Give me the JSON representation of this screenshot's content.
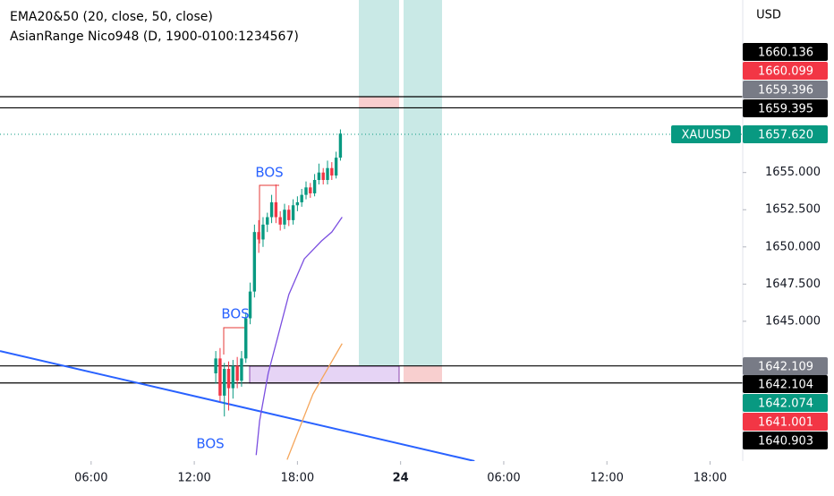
{
  "header": {
    "indicator_1": "EMA20&50 (20, close, 50, close)",
    "indicator_2": "AsianRange Nico948 (D, 1900-0100:1234567)",
    "currency": "USD"
  },
  "chart_data": {
    "type": "candlestick",
    "xlim": [
      0.7,
      43.9
    ],
    "ylim": [
      1635.6,
      1666.6
    ],
    "xticks": [
      {
        "value": 6,
        "label": "06:00"
      },
      {
        "value": 12,
        "label": "12:00"
      },
      {
        "value": 18,
        "label": "18:00"
      },
      24,
      {
        "value": 30,
        "label": "06:00"
      },
      {
        "value": 36,
        "label": "12:00"
      },
      {
        "value": 42,
        "label": "18:00"
      }
    ],
    "yticks": [
      {
        "value": 1645,
        "label": "1645.000"
      },
      {
        "value": 1647.5,
        "label": "1647.500"
      },
      {
        "value": 1650,
        "label": "1650.000"
      },
      {
        "value": 1652.5,
        "label": "1652.500"
      },
      {
        "value": 1655,
        "label": "1655.000"
      }
    ],
    "up_color": "#089981",
    "down_color": "#f23645",
    "candles": {
      "t": [
        13.25,
        13.5,
        13.75,
        14.0,
        14.25,
        14.5,
        14.75,
        15.0,
        15.25,
        15.5,
        15.75,
        16.0,
        16.25,
        16.5,
        16.75,
        17.0,
        17.25,
        17.5,
        17.75,
        18.0,
        18.25,
        18.5,
        18.75,
        19.0,
        19.25,
        19.5,
        19.75,
        20.0,
        20.25,
        20.5
      ],
      "open": [
        1641.5,
        1642.5,
        1640.0,
        1641.8,
        1640.5,
        1642.0,
        1641.0,
        1642.5,
        1645.2,
        1647.0,
        1651.0,
        1650.5,
        1651.5,
        1652.0,
        1653.0,
        1652.0,
        1651.5,
        1652.5,
        1651.8,
        1652.8,
        1653.0,
        1653.5,
        1654.0,
        1653.6,
        1654.5,
        1655.0,
        1654.5,
        1655.3,
        1654.8,
        1656.0
      ],
      "high": [
        1643.0,
        1643.2,
        1642.2,
        1642.3,
        1642.4,
        1642.6,
        1643.0,
        1645.6,
        1647.6,
        1651.5,
        1651.8,
        1652.0,
        1652.3,
        1653.5,
        1654.2,
        1652.4,
        1652.9,
        1652.8,
        1653.2,
        1653.4,
        1653.9,
        1654.4,
        1654.3,
        1654.9,
        1655.6,
        1655.3,
        1655.8,
        1655.7,
        1656.4,
        1657.9
      ],
      "low": [
        1640.8,
        1639.6,
        1638.6,
        1639.0,
        1639.8,
        1640.5,
        1640.6,
        1642.2,
        1644.8,
        1646.6,
        1649.6,
        1650.0,
        1651.0,
        1651.6,
        1651.6,
        1651.1,
        1651.2,
        1651.4,
        1651.5,
        1652.4,
        1652.7,
        1653.2,
        1653.3,
        1653.4,
        1654.2,
        1654.2,
        1654.2,
        1654.5,
        1654.6,
        1655.8
      ],
      "close": [
        1642.5,
        1640.0,
        1641.8,
        1640.5,
        1642.0,
        1641.0,
        1642.5,
        1645.2,
        1647.0,
        1651.0,
        1650.5,
        1651.5,
        1652.0,
        1653.0,
        1652.0,
        1651.5,
        1652.5,
        1651.8,
        1652.8,
        1653.0,
        1653.5,
        1654.0,
        1653.6,
        1654.5,
        1655.0,
        1654.5,
        1655.3,
        1654.8,
        1656.0,
        1657.62
      ]
    },
    "ema20": {
      "color": "#7b4fe0",
      "x": [
        15.6,
        15.8,
        16.3,
        16.8,
        17.5,
        18.4,
        19.4,
        20.0,
        20.6
      ],
      "y": [
        1636.0,
        1638.3,
        1641.5,
        1643.7,
        1646.8,
        1649.2,
        1650.4,
        1651.0,
        1652.0
      ]
    },
    "ema50": {
      "color": "#f5a65b",
      "x": [
        17.4,
        18.9,
        20.6
      ],
      "y": [
        1635.7,
        1640.1,
        1643.5
      ]
    },
    "trendline": {
      "color": "#2962ff",
      "x": [
        0.7,
        28.3
      ],
      "y": [
        1643.0,
        1635.6
      ]
    },
    "levels": [
      1660.1,
      1659.35,
      1642.0,
      1640.85
    ],
    "annotations": [
      "BOS",
      "BOS",
      "BOS"
    ],
    "symbol": "XAUUSD",
    "price_tags": [
      {
        "label": "1660.136",
        "color": "#000000"
      },
      {
        "label": "1660.099",
        "color": "#f23645"
      },
      {
        "label": "1659.396",
        "color": "#787b86"
      },
      {
        "label": "1659.395",
        "color": "#000000"
      },
      {
        "label": "1657.620",
        "color": "#089981"
      },
      {
        "label": "1642.109",
        "color": "#787b86"
      },
      {
        "label": "1642.104",
        "color": "#000000"
      },
      {
        "label": "1642.074",
        "color": "#089981"
      },
      {
        "label": "1641.001",
        "color": "#f23645"
      },
      {
        "label": "1640.903",
        "color": "#000000"
      }
    ]
  }
}
